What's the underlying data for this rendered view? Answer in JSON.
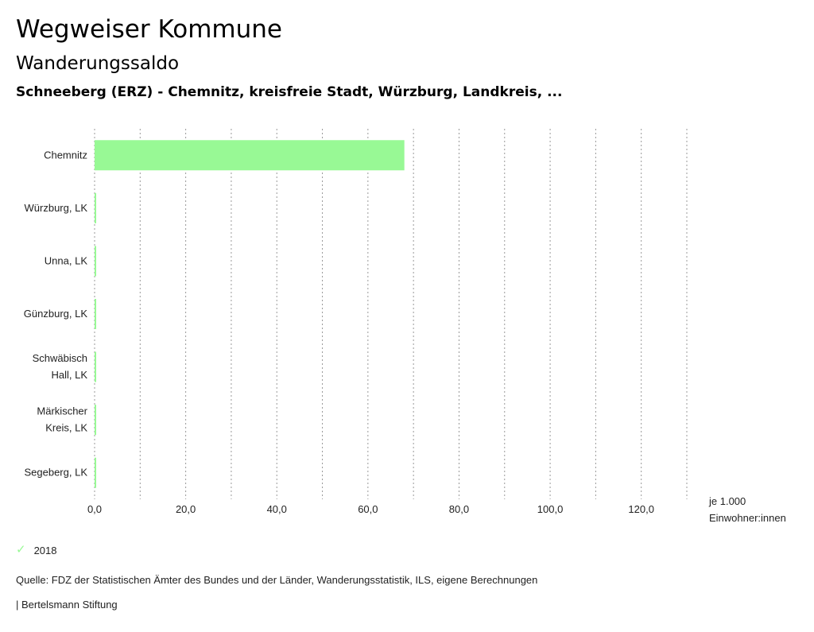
{
  "header": {
    "title": "Wegweiser Kommune",
    "subtitle": "Wanderungssaldo",
    "filter": "Schneeberg (ERZ) - Chemnitz, kreisfreie Stadt, Würzburg, Landkreis, ..."
  },
  "chart_data": {
    "type": "bar",
    "orientation": "horizontal",
    "categories": [
      [
        "Chemnitz"
      ],
      [
        "Würzburg, LK"
      ],
      [
        "Unna, LK"
      ],
      [
        "Günzburg, LK"
      ],
      [
        "Schwäbisch",
        "Hall, LK"
      ],
      [
        "Märkischer",
        "Kreis, LK"
      ],
      [
        "Segeberg, LK"
      ]
    ],
    "series": [
      {
        "name": "2018",
        "values": [
          68.0,
          0.2,
          0.2,
          0.2,
          0.2,
          0.2,
          0.2
        ]
      }
    ],
    "xlim": [
      0,
      130
    ],
    "xticks": [
      0,
      20,
      40,
      60,
      80,
      100,
      120
    ],
    "xtick_labels": [
      "0,0",
      "20,0",
      "40,0",
      "60,0",
      "80,0",
      "100,0",
      "120,0"
    ],
    "grid_values": [
      0,
      10,
      20,
      30,
      40,
      50,
      60,
      70,
      80,
      90,
      100,
      110,
      120,
      130
    ],
    "unit_label": [
      "je 1.000",
      "Einwohner:innen"
    ],
    "grid": true
  },
  "colors": {
    "bar": "#98f995",
    "grid": "#999999"
  },
  "legend": {
    "label": "2018",
    "icon": "check-icon"
  },
  "footer": {
    "source": "Quelle: FDZ der Statistischen Ämter des Bundes und der Länder, Wanderungsstatistik, ILS, eigene Berechnungen",
    "credit": "| Bertelsmann Stiftung"
  }
}
